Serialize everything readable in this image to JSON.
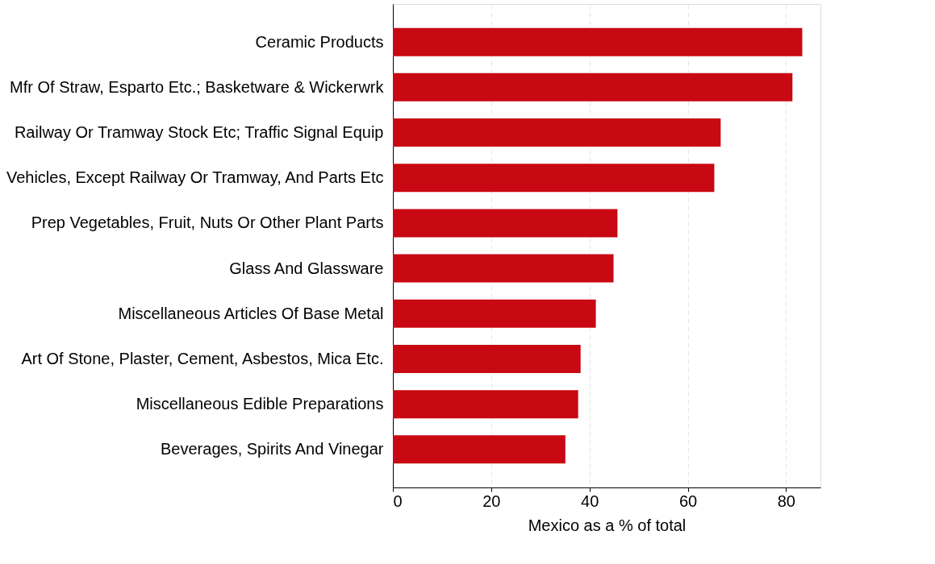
{
  "chart_data": {
    "type": "bar",
    "orientation": "horizontal",
    "xlabel": "Mexico as a % of total",
    "categories": [
      "Ceramic Products",
      "Mfr Of Straw, Esparto Etc.; Basketware & Wickerwrk",
      "Railway Or Tramway Stock Etc; Traffic Signal Equip",
      "Vehicles, Except Railway Or Tramway, And Parts Etc",
      "Prep Vegetables, Fruit, Nuts Or Other Plant Parts",
      "Glass And Glassware",
      "Miscellaneous Articles Of Base Metal",
      "Art Of Stone, Plaster, Cement, Asbestos, Mica Etc.",
      "Miscellaneous Edible Preparations",
      "Beverages, Spirits And Vinegar"
    ],
    "values": [
      83.3,
      81.3,
      66.7,
      65.4,
      45.7,
      44.9,
      41.3,
      38.2,
      37.7,
      35.1
    ],
    "color": "#c80812",
    "xlim": [
      0,
      87
    ],
    "xticks": [
      0,
      20,
      40,
      60,
      80
    ],
    "grid": "x"
  }
}
